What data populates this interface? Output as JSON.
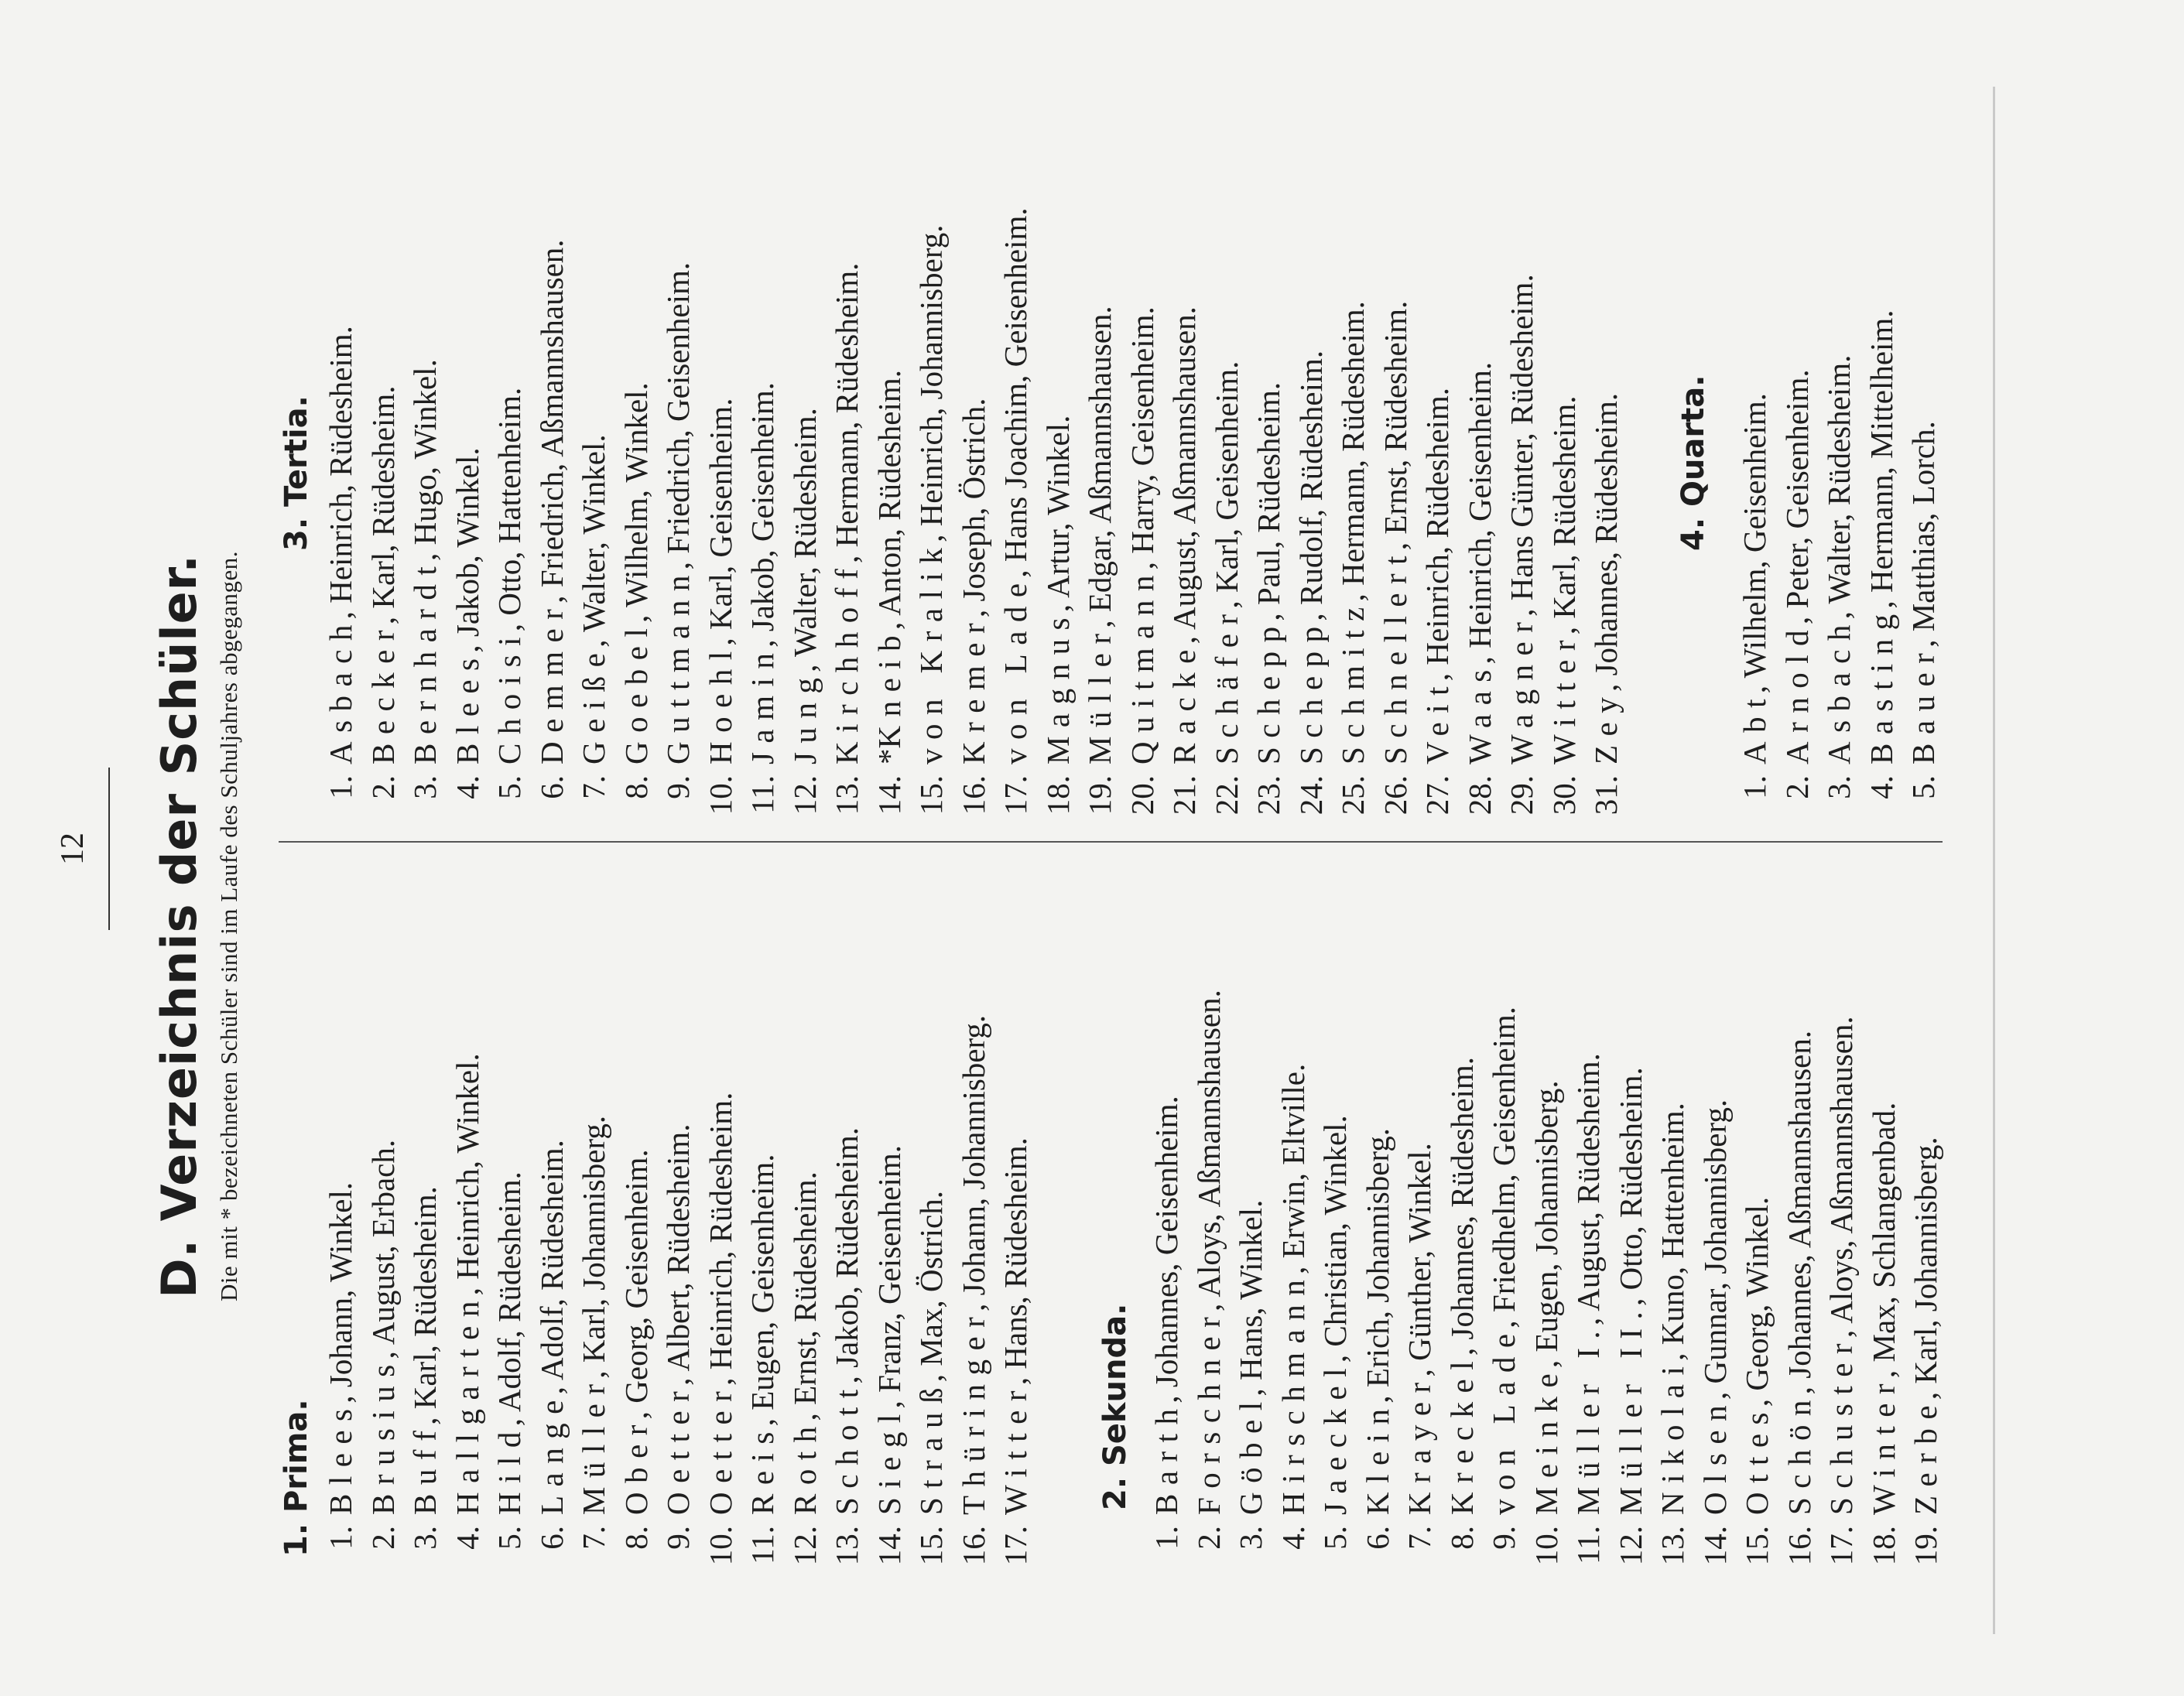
{
  "page_number": "12",
  "title": "D. Verzeichnis der Schüler.",
  "subtitle": "Die mit * bezeichneten Schüler sind im Laufe des Schuljahres abgegangen.",
  "sections": [
    {
      "heading": "1. Prima.",
      "entries": [
        {
          "num": "1.",
          "surname": "Blees",
          "rest": ", Johann, Winkel."
        },
        {
          "num": "2.",
          "surname": "Brusius",
          "rest": ", August, Erbach."
        },
        {
          "num": "3.",
          "surname": "Buff",
          "rest": ", Karl, Rüdesheim."
        },
        {
          "num": "4.",
          "surname": "Hallgarten",
          "rest": ", Heinrich, Winkel."
        },
        {
          "num": "5.",
          "surname": "Hild",
          "rest": ", Adolf, Rüdesheim."
        },
        {
          "num": "6.",
          "surname": "Lange",
          "rest": ", Adolf, Rüdesheim."
        },
        {
          "num": "7.",
          "surname": "Müller",
          "rest": ", Karl, Johannisberg."
        },
        {
          "num": "8.",
          "surname": "Ober",
          "rest": ", Georg, Geisenheim."
        },
        {
          "num": "9.",
          "surname": "Oetter",
          "rest": ", Albert, Rüdesheim."
        },
        {
          "num": "10.",
          "surname": "Oetter",
          "rest": ", Heinrich, Rüdesheim."
        },
        {
          "num": "11.",
          "surname": "Reis",
          "rest": ", Eugen, Geisenheim."
        },
        {
          "num": "12.",
          "surname": "Roth",
          "rest": ", Ernst, Rüdesheim."
        },
        {
          "num": "13.",
          "surname": "Schott",
          "rest": ", Jakob, Rüdesheim."
        },
        {
          "num": "14.",
          "surname": "Siegl",
          "rest": ", Franz, Geisenheim."
        },
        {
          "num": "15.",
          "surname": "Strauß",
          "rest": ", Max, Östrich."
        },
        {
          "num": "16.",
          "surname": "Thüringer",
          "rest": ", Johann, Johannisberg."
        },
        {
          "num": "17.",
          "surname": "Witter",
          "rest": ", Hans, Rüdesheim."
        }
      ]
    },
    {
      "heading": "2. Sekunda.",
      "entries": [
        {
          "num": "1.",
          "surname": "Barth",
          "rest": ", Johannes, Geisenheim."
        },
        {
          "num": "2.",
          "surname": "Forschner",
          "rest": ", Aloys, Aßmannshausen."
        },
        {
          "num": "3.",
          "surname": "Göbel",
          "rest": ", Hans, Winkel."
        },
        {
          "num": "4.",
          "surname": "Hirschmann",
          "rest": ", Erwin, Eltville."
        },
        {
          "num": "5.",
          "surname": "Jaeckel",
          "rest": ", Christian, Winkel."
        },
        {
          "num": "6.",
          "surname": "Klein",
          "rest": ", Erich, Johannisberg."
        },
        {
          "num": "7.",
          "surname": "Krayer",
          "rest": ", Günther, Winkel."
        },
        {
          "num": "8.",
          "surname": "Kreckel",
          "rest": ", Johannes, Rüdesheim."
        },
        {
          "num": "9.",
          "surname": "von Lade",
          "rest": ", Friedhelm, Geisenheim."
        },
        {
          "num": "10.",
          "surname": "Meinke",
          "rest": ", Eugen, Johannisberg."
        },
        {
          "num": "11.",
          "surname": "Müller I.",
          "rest": ", August, Rüdesheim."
        },
        {
          "num": "12.",
          "surname": "Müller II.",
          "rest": ", Otto, Rüdesheim."
        },
        {
          "num": "13.",
          "surname": "Nikolai",
          "rest": ", Kuno, Hattenheim."
        },
        {
          "num": "14.",
          "surname": "Olsen",
          "rest": ", Gunnar, Johannisberg."
        },
        {
          "num": "15.",
          "surname": "Ottes",
          "rest": ", Georg, Winkel."
        },
        {
          "num": "16.",
          "surname": "Schön",
          "rest": ", Johannes, Aßmannshausen."
        },
        {
          "num": "17.",
          "surname": "Schuster",
          "rest": ", Aloys, Aßmannshausen."
        },
        {
          "num": "18.",
          "surname": "Winter",
          "rest": ", Max, Schlangenbad."
        },
        {
          "num": "19.",
          "surname": "Zerbe",
          "rest": ", Karl, Johannisberg."
        }
      ]
    },
    {
      "heading": "3. Tertia.",
      "entries": [
        {
          "num": "1.",
          "surname": "Asbach",
          "rest": ", Heinrich, Rüdesheim."
        },
        {
          "num": "2.",
          "surname": "Becker",
          "rest": ", Karl, Rüdesheim."
        },
        {
          "num": "3.",
          "surname": "Bernhardt",
          "rest": ", Hugo, Winkel."
        },
        {
          "num": "4.",
          "surname": "Blees",
          "rest": ", Jakob, Winkel."
        },
        {
          "num": "5.",
          "surname": "Choisi",
          "rest": ", Otto, Hattenheim."
        },
        {
          "num": "6.",
          "surname": "Demmer",
          "rest": ", Friedrich, Aßmannshausen."
        },
        {
          "num": "7.",
          "surname": "Geiße",
          "rest": ", Walter, Winkel."
        },
        {
          "num": "8.",
          "surname": "Goebel",
          "rest": ", Wilhelm, Winkel."
        },
        {
          "num": "9.",
          "surname": "Guttmann",
          "rest": ", Friedrich, Geisenheim."
        },
        {
          "num": "10.",
          "surname": "Hoehl",
          "rest": ", Karl, Geisenheim."
        },
        {
          "num": "11.",
          "surname": "Jamin",
          "rest": ", Jakob, Geisenheim."
        },
        {
          "num": "12.",
          "surname": "Jung",
          "rest": ", Walter, Rüdesheim."
        },
        {
          "num": "13.",
          "surname": "Kirchhoff",
          "rest": ", Hermann, Rüdesheim."
        },
        {
          "num": "14.",
          "prefix": "*",
          "surname": "Kneib",
          "rest": ", Anton, Rüdesheim."
        },
        {
          "num": "15.",
          "surname": "von Kralik",
          "rest": ", Heinrich, Johannisberg."
        },
        {
          "num": "16.",
          "surname": "Kremer",
          "rest": ", Joseph, Östrich."
        },
        {
          "num": "17.",
          "surname": "von Lade",
          "rest": ", Hans Joachim, Geisenheim."
        },
        {
          "num": "18.",
          "surname": "Magnus",
          "rest": ", Artur, Winkel."
        },
        {
          "num": "19.",
          "surname": "Müller",
          "rest": ", Edgar, Aßmannshausen."
        },
        {
          "num": "20.",
          "surname": "Quitmann",
          "rest": ", Harry, Geisenheim."
        },
        {
          "num": "21.",
          "surname": "Racke",
          "rest": ", August, Aßmannshausen."
        },
        {
          "num": "22.",
          "surname": "Schäfer",
          "rest": ", Karl, Geisenheim."
        },
        {
          "num": "23.",
          "surname": "Schepp",
          "rest": ", Paul, Rüdesheim."
        },
        {
          "num": "24.",
          "surname": "Schepp",
          "rest": ", Rudolf, Rüdesheim."
        },
        {
          "num": "25.",
          "surname": "Schmitz",
          "rest": ", Hermann, Rüdesheim."
        },
        {
          "num": "26.",
          "surname": "Schnellert",
          "rest": ", Ernst, Rüdesheim."
        },
        {
          "num": "27.",
          "surname": "Veit",
          "rest": ", Heinrich, Rüdesheim."
        },
        {
          "num": "28.",
          "surname": "Waas",
          "rest": ", Heinrich, Geisenheim."
        },
        {
          "num": "29.",
          "surname": "Wagner",
          "rest": ", Hans Günter, Rüdesheim."
        },
        {
          "num": "30.",
          "surname": "Witter",
          "rest": ", Karl, Rüdesheim."
        },
        {
          "num": "31.",
          "surname": "Zey",
          "rest": ", Johannes, Rüdesheim."
        }
      ]
    },
    {
      "heading": "4. Quarta.",
      "entries": [
        {
          "num": "1.",
          "surname": "Abt",
          "rest": ", Wilhelm, Geisenheim."
        },
        {
          "num": "2.",
          "surname": "Arnold",
          "rest": ", Peter, Geisenheim."
        },
        {
          "num": "3.",
          "surname": "Asbach",
          "rest": ", Walter, Rüdesheim."
        },
        {
          "num": "4.",
          "surname": "Basting",
          "rest": ", Hermann, Mittelheim."
        },
        {
          "num": "5.",
          "surname": "Bauer",
          "rest": ", Matthias, Lorch."
        }
      ]
    }
  ]
}
